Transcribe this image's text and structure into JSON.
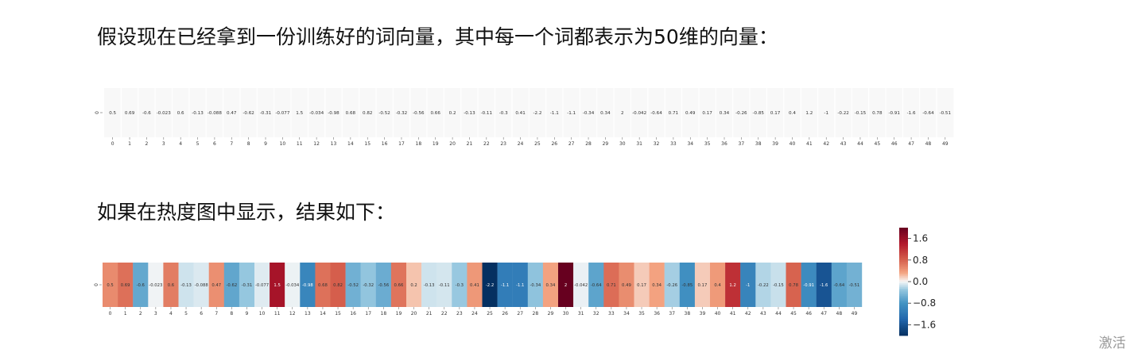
{
  "text": {
    "heading1": "假设现在已经拿到一份训练好的词向量，其中每一个词都表示为50维的向量：",
    "heading2": "如果在热度图中显示，结果如下：",
    "watermark": "激活"
  },
  "chart_data": [
    {
      "type": "table",
      "row_label": "0",
      "columns": [
        "0",
        "1",
        "2",
        "3",
        "4",
        "5",
        "6",
        "7",
        "8",
        "9",
        "10",
        "11",
        "12",
        "13",
        "14",
        "15",
        "16",
        "17",
        "18",
        "19",
        "20",
        "21",
        "22",
        "23",
        "24",
        "25",
        "26",
        "27",
        "28",
        "29",
        "30",
        "31",
        "32",
        "33",
        "34",
        "35",
        "36",
        "37",
        "38",
        "39",
        "40",
        "41",
        "42",
        "43",
        "44",
        "45",
        "46",
        "47",
        "48",
        "49"
      ],
      "values": [
        0.5,
        0.69,
        -0.6,
        -0.023,
        0.6,
        -0.13,
        -0.088,
        0.47,
        -0.62,
        -0.31,
        -0.077,
        1.5,
        -0.034,
        -0.98,
        0.68,
        0.82,
        -0.52,
        -0.32,
        -0.56,
        0.66,
        0.2,
        -0.13,
        -0.11,
        -0.3,
        0.41,
        -2.2,
        -1.1,
        -1.1,
        -0.34,
        0.34,
        2,
        -0.042,
        -0.64,
        0.71,
        0.49,
        0.17,
        0.34,
        -0.26,
        -0.85,
        0.17,
        0.4,
        1.2,
        -1,
        -0.22,
        -0.15,
        0.78,
        -0.91,
        -1.6,
        -0.64,
        -0.51
      ],
      "grid": true
    },
    {
      "type": "heatmap",
      "row_label": "0",
      "columns": [
        "0",
        "1",
        "2",
        "3",
        "4",
        "5",
        "6",
        "7",
        "8",
        "9",
        "10",
        "11",
        "12",
        "13",
        "14",
        "15",
        "16",
        "17",
        "18",
        "19",
        "20",
        "21",
        "22",
        "23",
        "24",
        "25",
        "26",
        "27",
        "28",
        "29",
        "30",
        "31",
        "32",
        "33",
        "34",
        "35",
        "36",
        "37",
        "38",
        "39",
        "40",
        "41",
        "42",
        "43",
        "44",
        "45",
        "46",
        "47",
        "48",
        "49"
      ],
      "values": [
        0.5,
        0.69,
        -0.6,
        -0.023,
        0.6,
        -0.13,
        -0.088,
        0.47,
        -0.62,
        -0.31,
        -0.077,
        1.5,
        -0.034,
        -0.98,
        0.68,
        0.82,
        -0.52,
        -0.32,
        -0.56,
        0.66,
        0.2,
        -0.13,
        -0.11,
        -0.3,
        0.41,
        -2.2,
        -1.1,
        -1.1,
        -0.34,
        0.34,
        2,
        -0.042,
        -0.64,
        0.71,
        0.49,
        0.17,
        0.34,
        -0.26,
        -0.85,
        0.17,
        0.4,
        1.2,
        -1,
        -0.22,
        -0.15,
        0.78,
        -0.91,
        -1.6,
        -0.64,
        -0.51
      ],
      "colormap": "RdBu_r",
      "vmin": -2,
      "vmax": 2,
      "colorbar": {
        "ticks": [
          1.6,
          0.8,
          0.0,
          -0.8,
          -1.6
        ],
        "tick_labels": [
          "1.6",
          "0.8",
          "0.0",
          "−0.8",
          "−1.6"
        ],
        "placement": "right"
      }
    }
  ]
}
